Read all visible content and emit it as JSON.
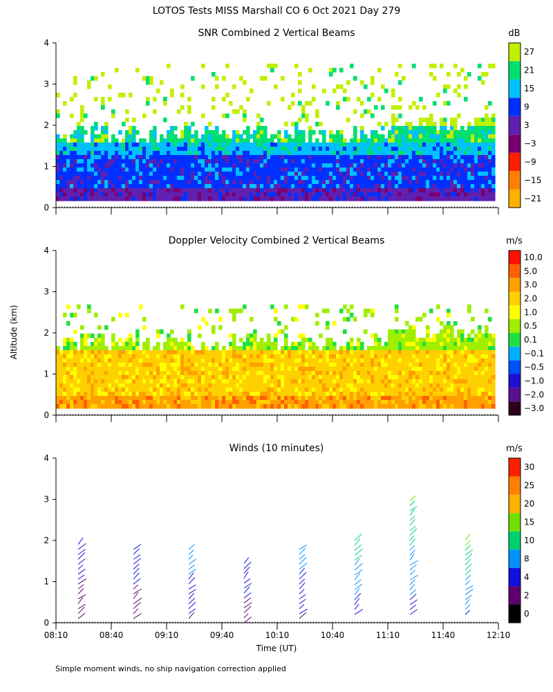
{
  "page": {
    "title": "LOTOS Tests MISS Marshall CO   6 Oct 2021 Day 279",
    "ylabel": "Altitude (km)",
    "xlabel": "Time (UT)",
    "footnote": "Simple moment winds, no ship navigation correction applied"
  },
  "chart_data": [
    {
      "type": "heatmap",
      "title": "SNR Combined 2 Vertical Beams",
      "xlabel": "Time (UT)",
      "ylabel": "Altitude (km)",
      "x_ticks": [
        "08:10",
        "08:40",
        "09:10",
        "09:40",
        "10:10",
        "10:40",
        "11:10",
        "11:40",
        "12:10"
      ],
      "y_ticks": [
        0,
        1,
        2,
        3,
        4
      ],
      "ylim": [
        0,
        4
      ],
      "colorbar": {
        "unit": "dB",
        "ticks": [
          "27",
          "21",
          "15",
          "9",
          "3",
          "−3",
          "−9",
          "−15",
          "−21"
        ],
        "colors": [
          "#ffb000",
          "#ff8000",
          "#ff2000",
          "#7a0070",
          "#6020b0",
          "#0030ff",
          "#00c0ff",
          "#00e070",
          "#c0f000"
        ]
      },
      "layers": [
        {
          "alt_range_km": [
            0.2,
            0.5
          ],
          "value": "9",
          "color": "#6020b0"
        },
        {
          "alt_range_km": [
            0.5,
            1.3
          ],
          "value": "-3",
          "color": "#0030ff"
        },
        {
          "alt_range_km": [
            1.3,
            1.6
          ],
          "value": "-9",
          "color": "#00c0ff"
        },
        {
          "alt_range_km": [
            1.6,
            2.0
          ],
          "value": "-15",
          "color": "#00e070"
        },
        {
          "alt_range_km": [
            2.0,
            3.5
          ],
          "value": "-21",
          "color": "#c0f000"
        }
      ]
    },
    {
      "type": "heatmap",
      "title": "Doppler Velocity Combined 2 Vertical Beams",
      "xlabel": "Time (UT)",
      "ylabel": "Altitude (km)",
      "x_ticks": [
        "08:10",
        "08:40",
        "09:10",
        "09:40",
        "10:10",
        "10:40",
        "11:10",
        "11:40",
        "12:10"
      ],
      "y_ticks": [
        0,
        1,
        2,
        3,
        4
      ],
      "ylim": [
        0,
        4
      ],
      "colorbar": {
        "unit": "m/s",
        "ticks": [
          "10.0",
          "5.0",
          "3.0",
          "2.0",
          "1.0",
          "0.5",
          "0.1",
          "−0.1",
          "−0.5",
          "−1.0",
          "−2.0",
          "−3.0"
        ],
        "colors": [
          "#300020",
          "#5a1090",
          "#2010d0",
          "#0050ff",
          "#00b0ff",
          "#20e040",
          "#a0ee00",
          "#ffff00",
          "#ffd000",
          "#ffa000",
          "#ff6000",
          "#ff1000"
        ]
      },
      "layers": [
        {
          "alt_range_km": [
            0.2,
            0.5
          ],
          "value": "-1.0",
          "color": "#ffa000"
        },
        {
          "alt_range_km": [
            0.5,
            1.6
          ],
          "value": "-0.5",
          "color": "#ffd000"
        },
        {
          "alt_range_km": [
            1.6,
            2.7
          ],
          "value": "0.1",
          "color": "#a0ee00"
        }
      ]
    },
    {
      "type": "scatter",
      "title": "Winds (10 minutes)",
      "xlabel": "Time (UT)",
      "ylabel": "Altitude (km)",
      "x_ticks": [
        "08:10",
        "08:40",
        "09:10",
        "09:40",
        "10:10",
        "10:40",
        "11:10",
        "11:40",
        "12:10"
      ],
      "y_ticks": [
        0,
        1,
        2,
        3,
        4
      ],
      "ylim": [
        0,
        4
      ],
      "colorbar": {
        "unit": "m/s",
        "ticks": [
          "30",
          "25",
          "20",
          "15",
          "10",
          "8",
          "4",
          "2",
          "0"
        ],
        "colors": [
          "#000000",
          "#600070",
          "#1010e0",
          "#0090ff",
          "#00d070",
          "#70e000",
          "#ffb000",
          "#ff8000",
          "#ff2000"
        ]
      },
      "profiles": [
        {
          "time": "08:25",
          "alt_min_km": 0.1,
          "alt_max_km": 2.0,
          "speed_ms": 6
        },
        {
          "time": "08:55",
          "alt_min_km": 0.1,
          "alt_max_km": 1.8,
          "speed_ms": 6
        },
        {
          "time": "09:25",
          "alt_min_km": 0.1,
          "alt_max_km": 1.8,
          "speed_ms": 9
        },
        {
          "time": "09:55",
          "alt_min_km": 0.0,
          "alt_max_km": 1.5,
          "speed_ms": 7
        },
        {
          "time": "10:25",
          "alt_min_km": 0.1,
          "alt_max_km": 1.9,
          "speed_ms": 9
        },
        {
          "time": "10:55",
          "alt_min_km": 0.2,
          "alt_max_km": 2.1,
          "speed_ms": 12
        },
        {
          "time": "11:25",
          "alt_min_km": 0.2,
          "alt_max_km": 3.0,
          "speed_ms": 13
        },
        {
          "time": "11:55",
          "alt_min_km": 0.2,
          "alt_max_km": 2.1,
          "speed_ms": 14
        }
      ]
    }
  ]
}
